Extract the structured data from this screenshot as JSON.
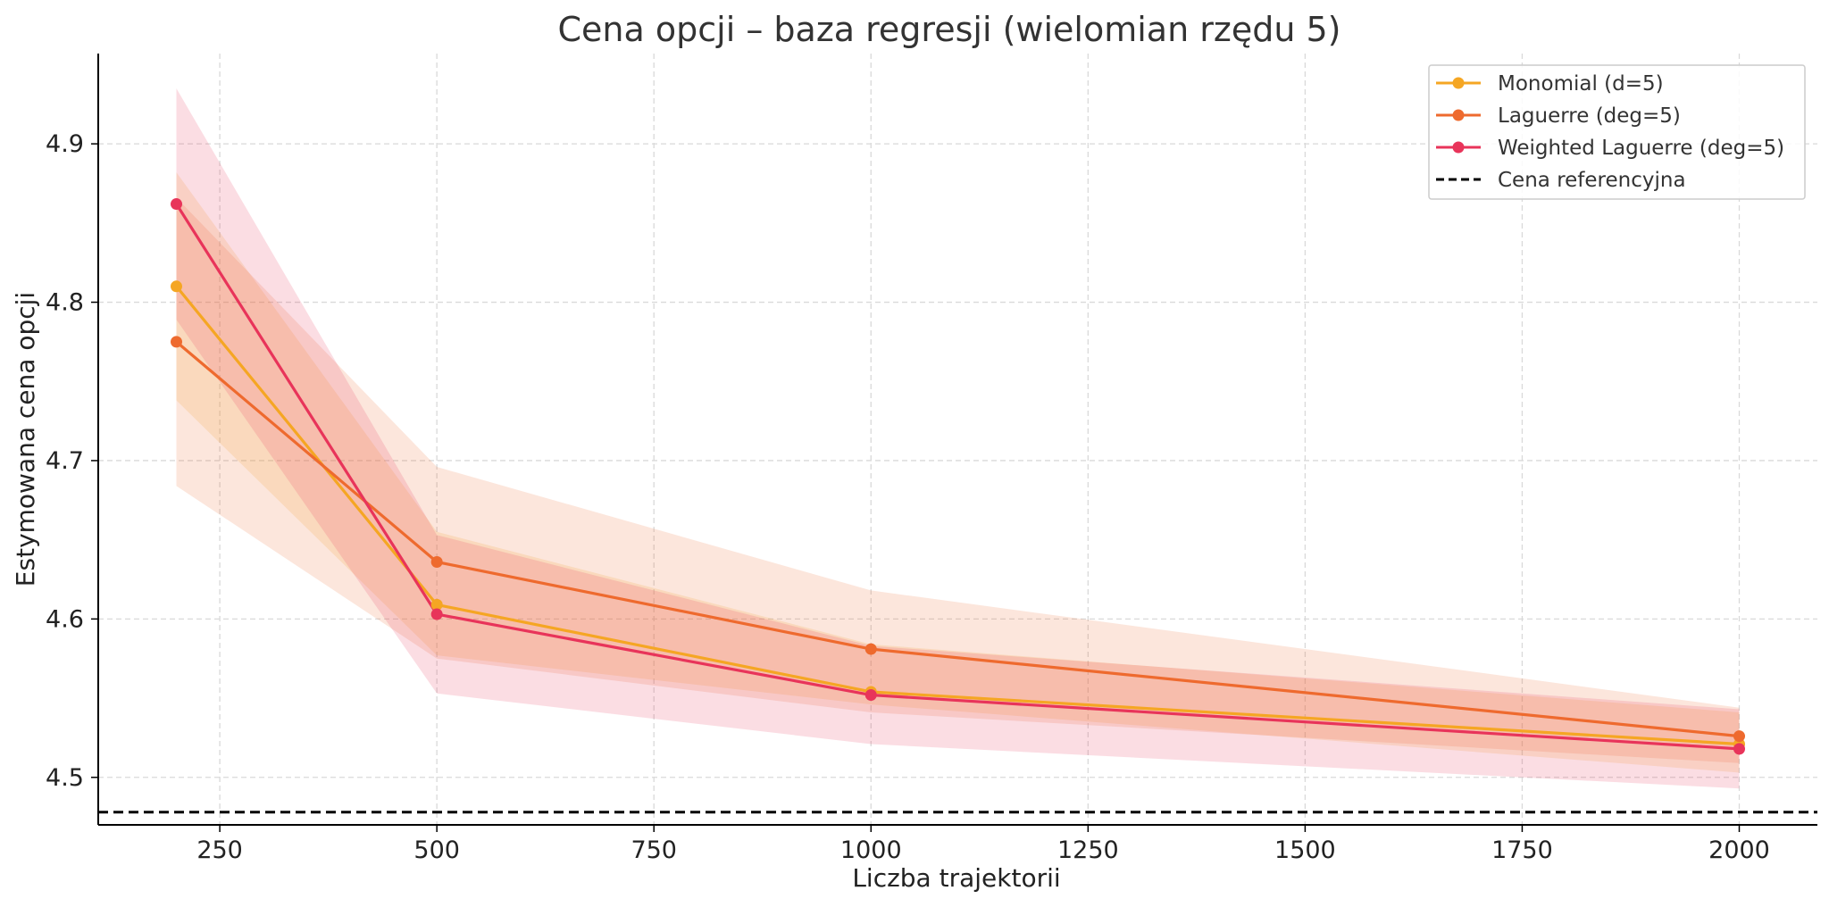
{
  "chart_data": {
    "type": "line",
    "title": "Cena opcji – baza regresji (wielomian rzędu 5)",
    "xlabel": "Liczba trajektorii",
    "ylabel": "Estymowana cena opcji",
    "x": [
      200,
      500,
      1000,
      2000
    ],
    "xlim": [
      110,
      2090
    ],
    "ylim": [
      4.47,
      4.957
    ],
    "xticks": [
      250,
      500,
      750,
      1000,
      1250,
      1500,
      1750,
      2000
    ],
    "yticks": [
      4.5,
      4.6,
      4.7,
      4.8,
      4.9
    ],
    "xtick_labels": [
      "250",
      "500",
      "750",
      "1000",
      "1250",
      "1500",
      "1750",
      "2000"
    ],
    "ytick_labels": [
      "4.5",
      "4.6",
      "4.7",
      "4.8",
      "4.9"
    ],
    "grid": true,
    "legend_position": "top-right",
    "series": [
      {
        "name": "Monomial (d=5)",
        "color": "#F5A623",
        "values": [
          4.81,
          4.609,
          4.554,
          4.521
        ],
        "band_lower": [
          4.738,
          4.577,
          4.546,
          4.503
        ],
        "band_upper": [
          4.882,
          4.655,
          4.584,
          4.541
        ]
      },
      {
        "name": "Laguerre (deg=5)",
        "color": "#EE6A2E",
        "values": [
          4.775,
          4.636,
          4.581,
          4.526
        ],
        "band_lower": [
          4.684,
          4.575,
          4.541,
          4.509
        ],
        "band_upper": [
          4.866,
          4.696,
          4.618,
          4.544
        ]
      },
      {
        "name": "Weighted Laguerre (deg=5)",
        "color": "#E8345A",
        "values": [
          4.862,
          4.603,
          4.552,
          4.518
        ],
        "band_lower": [
          4.789,
          4.553,
          4.521,
          4.493
        ],
        "band_upper": [
          4.935,
          4.653,
          4.583,
          4.543
        ]
      }
    ],
    "reference": {
      "name": "Cena referencyjna",
      "value": 4.478,
      "color": "#000000",
      "style": "dashed"
    }
  }
}
